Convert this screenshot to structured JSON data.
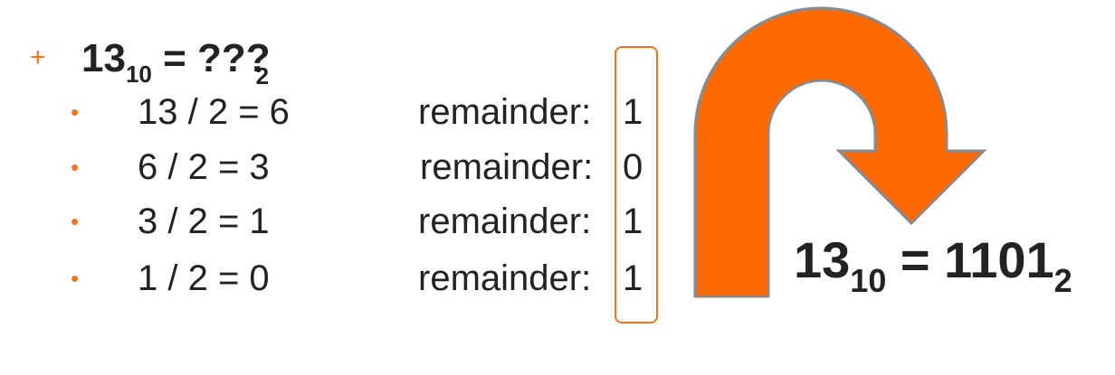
{
  "heading": {
    "base_num": "13",
    "base_sub": "10",
    "eq_text": " = ???",
    "target_sub": "2"
  },
  "rows": [
    {
      "equation": "13 / 2 = 6",
      "label": "remainder:",
      "value": "1"
    },
    {
      "equation": "6 / 2 = 3",
      "label": "remainder:",
      "value": "0"
    },
    {
      "equation": "3 / 2 = 1",
      "label": "remainder:",
      "value": "1"
    },
    {
      "equation": "1 / 2 = 0",
      "label": "remainder:",
      "value": "1"
    }
  ],
  "result": {
    "base_num": "13",
    "base_sub": "10",
    "eq_text": " = 1101",
    "target_sub": "2"
  },
  "bullets": {
    "main": "+",
    "item": "•"
  },
  "colors": {
    "accent": "#e87722",
    "arrow_fill": "#ff6a00",
    "arrow_stroke": "#8a8a8a",
    "text": "#222222"
  }
}
